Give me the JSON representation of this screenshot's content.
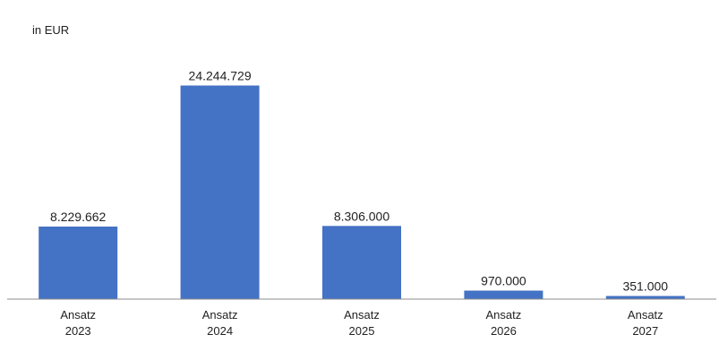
{
  "chart_data": {
    "type": "bar",
    "unit_label": "in EUR",
    "categories": [
      [
        "Ansatz",
        "2023"
      ],
      [
        "Ansatz",
        "2024"
      ],
      [
        "Ansatz",
        "2025"
      ],
      [
        "Ansatz",
        "2026"
      ],
      [
        "Ansatz",
        "2027"
      ]
    ],
    "values": [
      8229662,
      24244729,
      8306000,
      970000,
      351000
    ],
    "value_labels": [
      "8.229.662",
      "24.244.729",
      "8.306.000",
      "970.000",
      "351.000"
    ],
    "ylim": [
      0,
      25000000
    ],
    "grid": false,
    "legend": "none",
    "bar_color": "#4472c4"
  }
}
